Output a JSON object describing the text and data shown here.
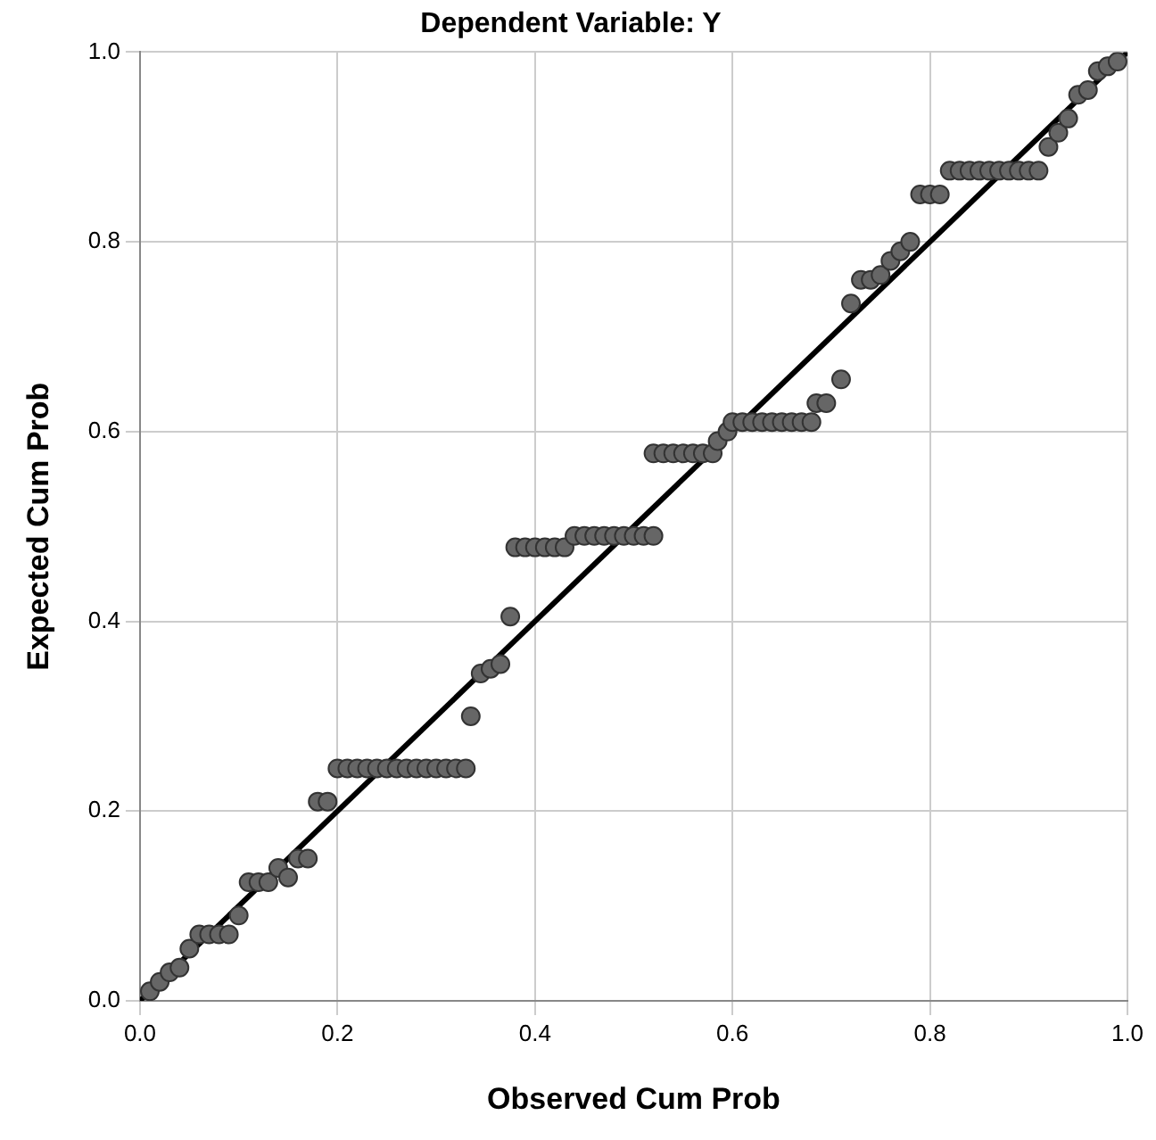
{
  "chart_data": {
    "type": "scatter",
    "title": "Dependent Variable: Y",
    "xlabel": "Observed Cum Prob",
    "ylabel": "Expected Cum Prob",
    "xlim": [
      0,
      1
    ],
    "ylim": [
      0,
      1
    ],
    "xticks": [
      {
        "value": 0,
        "label": "0.0"
      },
      {
        "value": 0.2,
        "label": "0.2"
      },
      {
        "value": 0.4,
        "label": "0.4"
      },
      {
        "value": 0.6,
        "label": "0.6"
      },
      {
        "value": 0.8,
        "label": "0.8"
      },
      {
        "value": 1,
        "label": "1.0"
      }
    ],
    "yticks": [
      {
        "value": 0,
        "label": "0.0"
      },
      {
        "value": 0.2,
        "label": "0.2"
      },
      {
        "value": 0.4,
        "label": "0.4"
      },
      {
        "value": 0.6,
        "label": "0.6"
      },
      {
        "value": 0.8,
        "label": "0.8"
      },
      {
        "value": 1,
        "label": "1.0"
      }
    ],
    "grid": true,
    "legend": false,
    "marker": "circle",
    "series": [
      {
        "type": "scatter",
        "color": "#666666",
        "x": [
          0.01,
          0.02,
          0.03,
          0.04,
          0.05,
          0.06,
          0.07,
          0.08,
          0.09,
          0.1,
          0.11,
          0.12,
          0.13,
          0.14,
          0.15,
          0.16,
          0.17,
          0.18,
          0.19,
          0.2,
          0.21,
          0.22,
          0.23,
          0.24,
          0.25,
          0.26,
          0.27,
          0.28,
          0.29,
          0.3,
          0.31,
          0.32,
          0.33,
          0.335,
          0.345,
          0.355,
          0.365,
          0.375,
          0.38,
          0.39,
          0.4,
          0.41,
          0.42,
          0.43,
          0.44,
          0.45,
          0.46,
          0.47,
          0.48,
          0.49,
          0.5,
          0.51,
          0.52,
          0.52,
          0.53,
          0.54,
          0.55,
          0.56,
          0.57,
          0.58,
          0.585,
          0.595,
          0.6,
          0.61,
          0.62,
          0.63,
          0.64,
          0.65,
          0.66,
          0.67,
          0.68,
          0.685,
          0.695,
          0.71,
          0.72,
          0.73,
          0.74,
          0.75,
          0.76,
          0.77,
          0.78,
          0.79,
          0.8,
          0.81,
          0.82,
          0.83,
          0.84,
          0.85,
          0.86,
          0.87,
          0.88,
          0.89,
          0.9,
          0.91,
          0.92,
          0.93,
          0.94,
          0.95,
          0.96,
          0.97,
          0.98,
          0.99
        ],
        "values": [
          0.01,
          0.02,
          0.03,
          0.035,
          0.055,
          0.07,
          0.07,
          0.07,
          0.07,
          0.09,
          0.125,
          0.125,
          0.125,
          0.14,
          0.13,
          0.15,
          0.15,
          0.21,
          0.21,
          0.245,
          0.245,
          0.245,
          0.245,
          0.245,
          0.245,
          0.245,
          0.245,
          0.245,
          0.245,
          0.245,
          0.245,
          0.245,
          0.245,
          0.3,
          0.345,
          0.35,
          0.355,
          0.405,
          0.478,
          0.478,
          0.478,
          0.478,
          0.478,
          0.478,
          0.49,
          0.49,
          0.49,
          0.49,
          0.49,
          0.49,
          0.49,
          0.49,
          0.49,
          0.577,
          0.577,
          0.577,
          0.577,
          0.577,
          0.577,
          0.577,
          0.59,
          0.6,
          0.61,
          0.61,
          0.61,
          0.61,
          0.61,
          0.61,
          0.61,
          0.61,
          0.61,
          0.63,
          0.63,
          0.655,
          0.735,
          0.76,
          0.76,
          0.765,
          0.78,
          0.79,
          0.8,
          0.85,
          0.85,
          0.85,
          0.875,
          0.875,
          0.875,
          0.875,
          0.875,
          0.875,
          0.875,
          0.875,
          0.875,
          0.875,
          0.9,
          0.915,
          0.93,
          0.955,
          0.96,
          0.98,
          0.985,
          0.99
        ]
      },
      {
        "type": "line",
        "color": "#000000",
        "marker": "none",
        "x": [
          0,
          1
        ],
        "values": [
          0,
          1
        ]
      }
    ]
  }
}
